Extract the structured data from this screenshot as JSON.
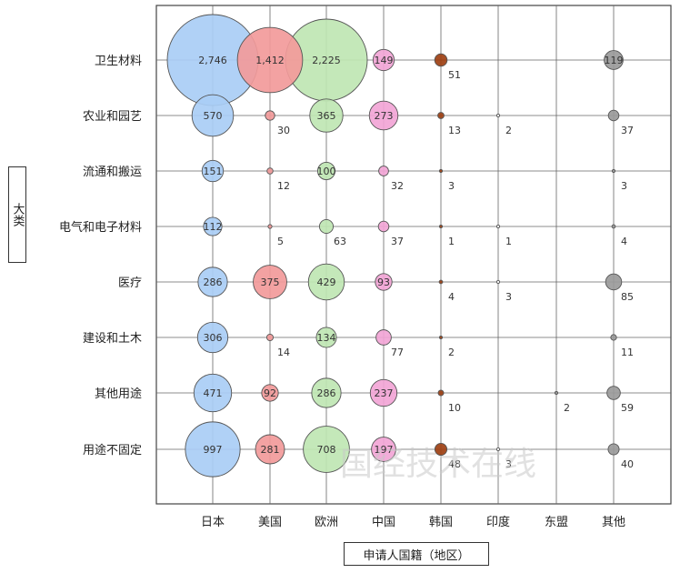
{
  "chart_data": {
    "type": "bubble",
    "title": "",
    "xlabel": "申请人国籍（地区）",
    "ylabel": "大类",
    "x_categories": [
      "日本",
      "美国",
      "欧洲",
      "中国",
      "韩国",
      "印度",
      "东盟",
      "其他"
    ],
    "y_categories": [
      "卫生材料",
      "农业和园艺",
      "流通和搬运",
      "电气和电子材料",
      "医疗",
      "建设和土木",
      "其他用途",
      "用途不固定"
    ],
    "values": [
      [
        2746,
        1412,
        2225,
        149,
        51,
        0,
        0,
        119
      ],
      [
        570,
        30,
        365,
        273,
        13,
        2,
        0,
        37
      ],
      [
        151,
        12,
        100,
        32,
        3,
        0,
        0,
        3
      ],
      [
        112,
        5,
        63,
        37,
        1,
        1,
        0,
        4
      ],
      [
        286,
        375,
        429,
        93,
        4,
        3,
        0,
        85
      ],
      [
        306,
        14,
        134,
        77,
        2,
        0,
        0,
        11
      ],
      [
        471,
        92,
        286,
        237,
        10,
        0,
        2,
        59
      ],
      [
        997,
        281,
        708,
        197,
        48,
        3,
        0,
        40
      ]
    ],
    "labels": [
      [
        "2,746",
        "1,412",
        "2,225",
        "149",
        "51",
        "",
        "",
        "119"
      ],
      [
        "570",
        "30",
        "365",
        "273",
        "13",
        "2",
        "",
        "37"
      ],
      [
        "151",
        "12",
        "100",
        "32",
        "3",
        "",
        "",
        "3"
      ],
      [
        "112",
        "5",
        "63",
        "37",
        "1",
        "1",
        "",
        "4"
      ],
      [
        "286",
        "375",
        "429",
        "93",
        "4",
        "3",
        "",
        "85"
      ],
      [
        "306",
        "14",
        "134",
        "77",
        "2",
        "",
        "",
        "11"
      ],
      [
        "471",
        "92",
        "286",
        "237",
        "10",
        "",
        "2",
        "59"
      ],
      [
        "997",
        "281",
        "708",
        "197",
        "48",
        "3",
        "",
        "40"
      ]
    ],
    "colors": {
      "日本": "#a9cdf5",
      "美国": "#f29a9a",
      "欧洲": "#bfe6b3",
      "中国": "#f2a5d6",
      "韩国": "#9e4012",
      "印度": "#ffffff",
      "东盟": "#9a9a9a",
      "其他": "#9a9a9a"
    },
    "grid": true
  },
  "watermark": "国经技术在线"
}
